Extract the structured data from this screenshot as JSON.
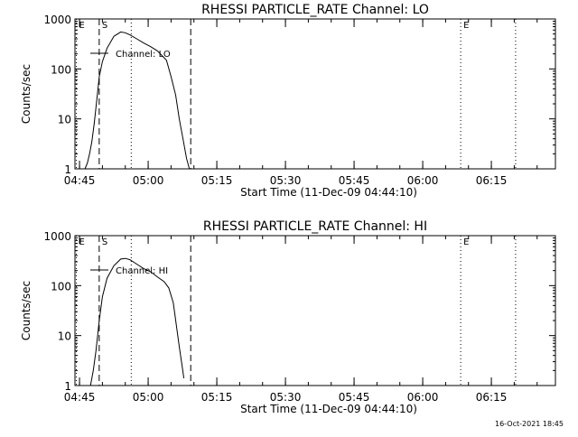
{
  "timestamp": "16-Oct-2021 18:45",
  "chart_data": [
    {
      "type": "line",
      "title": "RHESSI PARTICLE_RATE Channel: LO",
      "xlabel": "Start Time (11-Dec-09 04:44:10)",
      "ylabel": "Counts/sec",
      "x_unit": "minutes",
      "xlim": [
        0,
        105
      ],
      "ylim": [
        1,
        1000
      ],
      "log_y": true,
      "x_ticks": [
        {
          "v": 1,
          "label": "04:45"
        },
        {
          "v": 16,
          "label": "05:00"
        },
        {
          "v": 31,
          "label": "05:15"
        },
        {
          "v": 46,
          "label": "05:30"
        },
        {
          "v": 61,
          "label": "05:45"
        },
        {
          "v": 76,
          "label": "06:00"
        },
        {
          "v": 91,
          "label": "06:15"
        }
      ],
      "y_ticks": [
        {
          "v": 1,
          "label": "1"
        },
        {
          "v": 10,
          "label": "10"
        },
        {
          "v": 100,
          "label": "100"
        },
        {
          "v": 1000,
          "label": "1000"
        }
      ],
      "legend": "Channel: LO",
      "markers": [
        {
          "v": 0.3,
          "label": "E",
          "style": "dotted"
        },
        {
          "v": 5.3,
          "label": "S",
          "style": "dashed"
        },
        {
          "v": 12.3,
          "label": "",
          "style": "dotted"
        },
        {
          "v": 25.3,
          "label": "",
          "style": "dashed"
        },
        {
          "v": 84.3,
          "label": "E",
          "style": "dotted"
        },
        {
          "v": 96.3,
          "label": "",
          "style": "dotted"
        }
      ],
      "series": [
        {
          "x": [
            2.2,
            2.7,
            3.2,
            3.7,
            4.2,
            4.8,
            5.3,
            6.0,
            7.0,
            8.5,
            10.0,
            11.0,
            12.0,
            13.5,
            15.0,
            16.5,
            18.0,
            20.0,
            21.0,
            22.0,
            22.8,
            23.6,
            24.4,
            25.0
          ],
          "y": [
            1,
            1.3,
            2,
            3.5,
            8,
            25,
            70,
            140,
            260,
            450,
            550,
            530,
            480,
            400,
            330,
            280,
            230,
            150,
            70,
            30,
            10,
            4,
            1.6,
            1
          ]
        }
      ]
    },
    {
      "type": "line",
      "title": "RHESSI PARTICLE_RATE Channel: HI",
      "xlabel": "Start Time (11-Dec-09 04:44:10)",
      "ylabel": "Counts/sec",
      "x_unit": "minutes",
      "xlim": [
        0,
        105
      ],
      "ylim": [
        1,
        1000
      ],
      "log_y": true,
      "x_ticks": [
        {
          "v": 1,
          "label": "04:45"
        },
        {
          "v": 16,
          "label": "05:00"
        },
        {
          "v": 31,
          "label": "05:15"
        },
        {
          "v": 46,
          "label": "05:30"
        },
        {
          "v": 61,
          "label": "05:45"
        },
        {
          "v": 76,
          "label": "06:00"
        },
        {
          "v": 91,
          "label": "06:15"
        }
      ],
      "y_ticks": [
        {
          "v": 1,
          "label": "1"
        },
        {
          "v": 10,
          "label": "10"
        },
        {
          "v": 100,
          "label": "100"
        },
        {
          "v": 1000,
          "label": "1000"
        }
      ],
      "legend": "Channel: HI",
      "markers": [
        {
          "v": 0.3,
          "label": "E",
          "style": "dotted"
        },
        {
          "v": 5.3,
          "label": "S",
          "style": "dashed"
        },
        {
          "v": 12.3,
          "label": "",
          "style": "dotted"
        },
        {
          "v": 25.3,
          "label": "",
          "style": "dashed"
        },
        {
          "v": 84.3,
          "label": "E",
          "style": "dotted"
        },
        {
          "v": 96.3,
          "label": "",
          "style": "dotted"
        }
      ],
      "series": [
        {
          "x": [
            3.4,
            4.0,
            4.6,
            5.3,
            6.0,
            7.0,
            8.5,
            10.0,
            11.0,
            12.0,
            13.5,
            15.0,
            16.5,
            18.0,
            19.5,
            20.5,
            21.5,
            22.2,
            22.8,
            23.4,
            23.8
          ],
          "y": [
            1,
            2,
            5,
            20,
            60,
            140,
            250,
            340,
            350,
            330,
            270,
            220,
            190,
            150,
            120,
            90,
            45,
            15,
            6,
            2.5,
            1.4
          ]
        }
      ]
    }
  ]
}
